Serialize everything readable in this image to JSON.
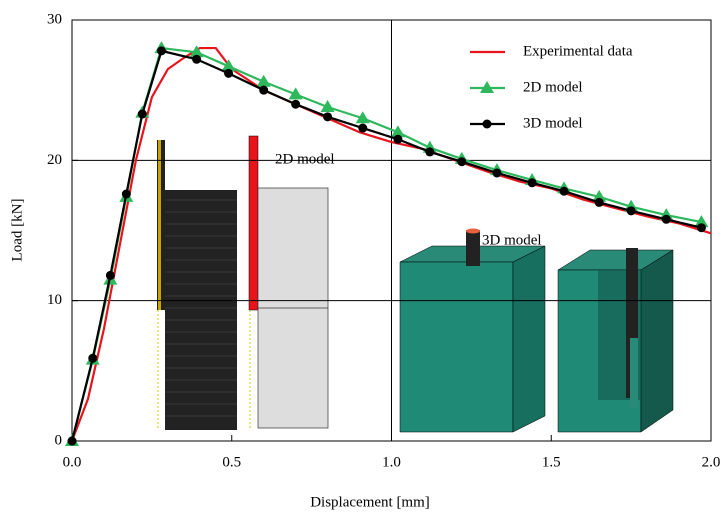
{
  "chart_data": {
    "type": "line",
    "xlabel": "Displacement [mm]",
    "ylabel": "Load [kN]",
    "xlim": [
      0,
      2.0
    ],
    "ylim": [
      0,
      30
    ],
    "xticks": [
      {
        "value": 0,
        "label": "0.0"
      },
      {
        "value": 0.5,
        "label": "0.5"
      },
      {
        "value": 1.0,
        "label": "1.0"
      },
      {
        "value": 1.5,
        "label": "1.5"
      },
      {
        "value": 2.0,
        "label": "2.0"
      }
    ],
    "yticks": [
      0,
      10,
      20,
      30
    ],
    "xgrid": [
      1.0
    ],
    "ygrid": [
      10,
      20
    ],
    "legend": "top-right",
    "annotations": [
      "2D model",
      "3D model"
    ],
    "series": [
      {
        "name": "Experimental data",
        "color": "#e8141c",
        "marker": "none",
        "x": [
          0,
          0.05,
          0.1,
          0.15,
          0.2,
          0.25,
          0.3,
          0.35,
          0.4,
          0.45,
          0.5,
          0.6,
          0.7,
          0.8,
          0.9,
          1.0,
          1.1,
          1.2,
          1.3,
          1.4,
          1.5,
          1.6,
          1.7,
          1.8,
          1.9,
          2.0
        ],
        "values": [
          0,
          3,
          8,
          14,
          20,
          24.5,
          26.5,
          27.3,
          28,
          28,
          26.5,
          25,
          24,
          23,
          22,
          21.3,
          20.8,
          20,
          19.2,
          18.5,
          18,
          17.2,
          16.6,
          16,
          15.5,
          14.8
        ]
      },
      {
        "name": "2D model",
        "color": "#2db85c",
        "marker": "triangle",
        "x": [
          0,
          0.065,
          0.12,
          0.17,
          0.22,
          0.28,
          0.39,
          0.49,
          0.6,
          0.7,
          0.8,
          0.91,
          1.02,
          1.12,
          1.22,
          1.33,
          1.44,
          1.54,
          1.65,
          1.75,
          1.86,
          1.97
        ],
        "values": [
          0,
          5.8,
          11.5,
          17.4,
          23.4,
          28,
          27.7,
          26.7,
          25.6,
          24.7,
          23.8,
          23,
          22,
          20.9,
          20.1,
          19.3,
          18.6,
          18,
          17.4,
          16.7,
          16.1,
          15.6
        ]
      },
      {
        "name": "3D model",
        "color": "#000000",
        "marker": "circle",
        "x": [
          0,
          0.065,
          0.12,
          0.17,
          0.22,
          0.28,
          0.39,
          0.49,
          0.6,
          0.7,
          0.8,
          0.91,
          1.02,
          1.12,
          1.22,
          1.33,
          1.44,
          1.54,
          1.65,
          1.75,
          1.86,
          1.97
        ],
        "values": [
          0,
          5.9,
          11.8,
          17.6,
          23.3,
          27.8,
          27.2,
          26.2,
          25,
          24,
          23.1,
          22.3,
          21.5,
          20.6,
          19.9,
          19.1,
          18.4,
          17.8,
          17,
          16.4,
          15.8,
          15.2
        ]
      }
    ]
  }
}
